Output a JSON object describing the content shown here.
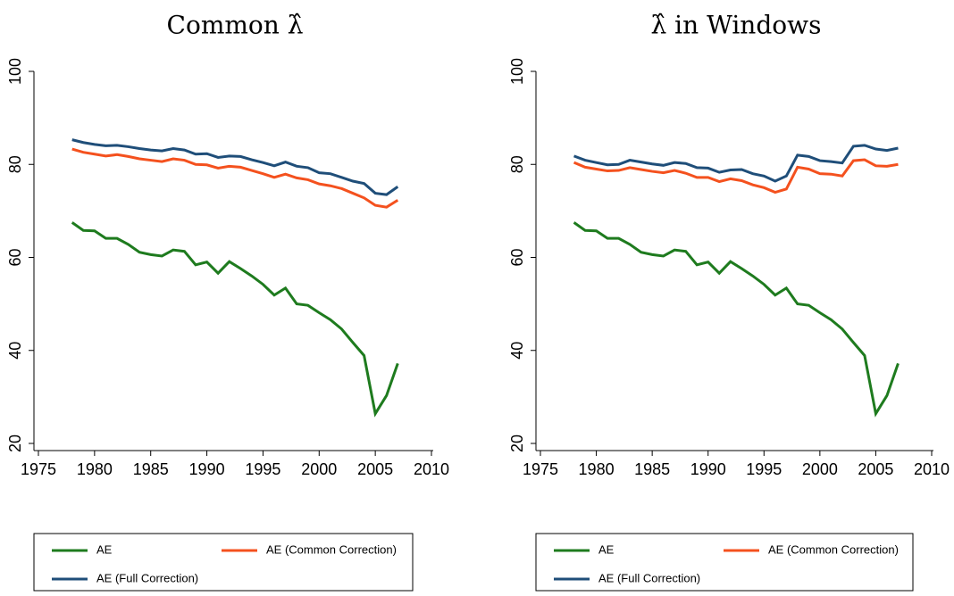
{
  "chart_data": [
    {
      "type": "line",
      "title": "Common λ̂",
      "x": [
        1978,
        1979,
        1980,
        1981,
        1982,
        1983,
        1984,
        1985,
        1986,
        1987,
        1988,
        1989,
        1990,
        1991,
        1992,
        1993,
        1994,
        1995,
        1996,
        1997,
        1998,
        1999,
        2000,
        2001,
        2002,
        2003,
        2004,
        2005,
        2006,
        2007
      ],
      "xlim": [
        1975,
        2010
      ],
      "xticks": [
        1975,
        1980,
        1985,
        1990,
        1995,
        2000,
        2005,
        2010
      ],
      "ylim": [
        20,
        100
      ],
      "yticks": [
        20,
        40,
        60,
        80,
        100
      ],
      "legend": "bottom",
      "series": [
        {
          "name": "AE",
          "color": "#1e7b1e",
          "values": [
            67.5,
            65.8,
            65.7,
            64.1,
            64.1,
            62.8,
            61.1,
            60.6,
            60.3,
            61.6,
            61.3,
            58.4,
            59.0,
            56.6,
            59.1,
            57.6,
            56.0,
            54.2,
            51.9,
            53.4,
            50.0,
            49.7,
            48.1,
            46.6,
            44.6,
            41.7,
            38.9,
            26.4,
            30.3,
            37.2
          ]
        },
        {
          "name": "AE (Common Correction)",
          "color": "#f4511e",
          "values": [
            83.3,
            82.6,
            82.2,
            81.8,
            82.1,
            81.7,
            81.2,
            80.9,
            80.6,
            81.2,
            80.9,
            80.0,
            79.9,
            79.2,
            79.6,
            79.4,
            78.7,
            78.0,
            77.2,
            77.9,
            77.1,
            76.7,
            75.8,
            75.4,
            74.8,
            73.8,
            72.8,
            71.2,
            70.8,
            72.3
          ]
        },
        {
          "name": "AE (Full Correction)",
          "color": "#1f4e79",
          "values": [
            85.3,
            84.7,
            84.3,
            84.0,
            84.1,
            83.8,
            83.4,
            83.1,
            82.9,
            83.4,
            83.1,
            82.2,
            82.3,
            81.5,
            81.8,
            81.7,
            81.0,
            80.4,
            79.7,
            80.5,
            79.6,
            79.3,
            78.2,
            78.0,
            77.2,
            76.4,
            75.9,
            73.8,
            73.5,
            75.2
          ]
        }
      ]
    },
    {
      "type": "line",
      "title": "λ̂ in Windows",
      "x": [
        1978,
        1979,
        1980,
        1981,
        1982,
        1983,
        1984,
        1985,
        1986,
        1987,
        1988,
        1989,
        1990,
        1991,
        1992,
        1993,
        1994,
        1995,
        1996,
        1997,
        1998,
        1999,
        2000,
        2001,
        2002,
        2003,
        2004,
        2005,
        2006,
        2007
      ],
      "xlim": [
        1975,
        2010
      ],
      "xticks": [
        1975,
        1980,
        1985,
        1990,
        1995,
        2000,
        2005,
        2010
      ],
      "ylim": [
        20,
        100
      ],
      "yticks": [
        20,
        40,
        60,
        80,
        100
      ],
      "legend": "bottom",
      "series": [
        {
          "name": "AE",
          "color": "#1e7b1e",
          "values": [
            67.5,
            65.8,
            65.7,
            64.1,
            64.1,
            62.8,
            61.1,
            60.6,
            60.3,
            61.6,
            61.3,
            58.4,
            59.0,
            56.6,
            59.1,
            57.6,
            56.0,
            54.2,
            51.9,
            53.4,
            50.0,
            49.7,
            48.1,
            46.6,
            44.6,
            41.7,
            38.9,
            26.4,
            30.3,
            37.2
          ]
        },
        {
          "name": "AE (Common Correction)",
          "color": "#f4511e",
          "values": [
            80.4,
            79.4,
            79.0,
            78.6,
            78.7,
            79.3,
            78.9,
            78.5,
            78.2,
            78.7,
            78.1,
            77.2,
            77.2,
            76.3,
            76.9,
            76.5,
            75.6,
            75.0,
            74.0,
            74.7,
            79.4,
            79.0,
            78.0,
            77.9,
            77.5,
            80.8,
            81.0,
            79.7,
            79.6,
            80.0
          ]
        },
        {
          "name": "AE (Full Correction)",
          "color": "#1f4e79",
          "values": [
            81.8,
            80.9,
            80.4,
            79.9,
            80.0,
            80.9,
            80.5,
            80.1,
            79.8,
            80.4,
            80.2,
            79.3,
            79.2,
            78.3,
            78.8,
            78.9,
            78.0,
            77.5,
            76.4,
            77.5,
            82.0,
            81.7,
            80.8,
            80.6,
            80.3,
            83.9,
            84.1,
            83.3,
            83.0,
            83.5
          ]
        }
      ]
    }
  ]
}
